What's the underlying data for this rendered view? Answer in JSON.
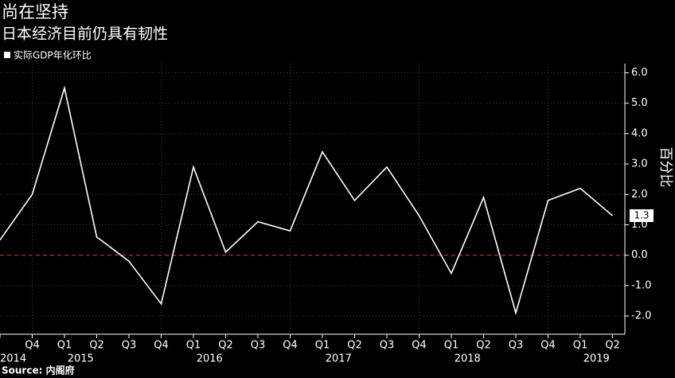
{
  "chart_data": {
    "type": "line",
    "title": "尚在坚持",
    "subtitle": "日本经济目前仍具有韧性",
    "y_label": "百分比",
    "source": "Source: 内阁府",
    "categories": [
      null,
      "Q4",
      "Q1",
      "Q2",
      "Q3",
      "Q4",
      "Q1",
      "Q2",
      "Q3",
      "Q4",
      "Q1",
      "Q2",
      "Q3",
      "Q4",
      "Q1",
      "Q2",
      "Q3",
      "Q4",
      "Q1",
      "Q2"
    ],
    "years": [
      "2014",
      "2015",
      "2016",
      "2017",
      "2018",
      "2019"
    ],
    "series": [
      {
        "name": "实际GDP年化环比",
        "color": "#ffffff",
        "values": [
          0.5,
          2.0,
          5.5,
          0.6,
          -0.2,
          -1.6,
          2.9,
          0.1,
          1.1,
          0.8,
          3.4,
          1.8,
          2.9,
          1.3,
          -0.6,
          1.9,
          -1.9,
          1.8,
          2.2,
          1.3
        ]
      }
    ],
    "ylim": [
      -2.6,
      6.3
    ],
    "yticks": [
      {
        "value": -2,
        "label": "-2.0"
      },
      {
        "value": -1,
        "label": "-1.0"
      },
      {
        "value": 0,
        "label": "0.0"
      },
      {
        "value": 1,
        "label": "1.0"
      },
      {
        "value": 2,
        "label": "2.0"
      },
      {
        "value": 3,
        "label": "3.0"
      },
      {
        "value": 4,
        "label": "4.0"
      },
      {
        "value": 5,
        "label": "5.0"
      },
      {
        "value": 6,
        "label": "6.0"
      }
    ],
    "grid": true,
    "zero_line_color": "#c0392b",
    "legend": "top-left",
    "background": "#000000"
  }
}
